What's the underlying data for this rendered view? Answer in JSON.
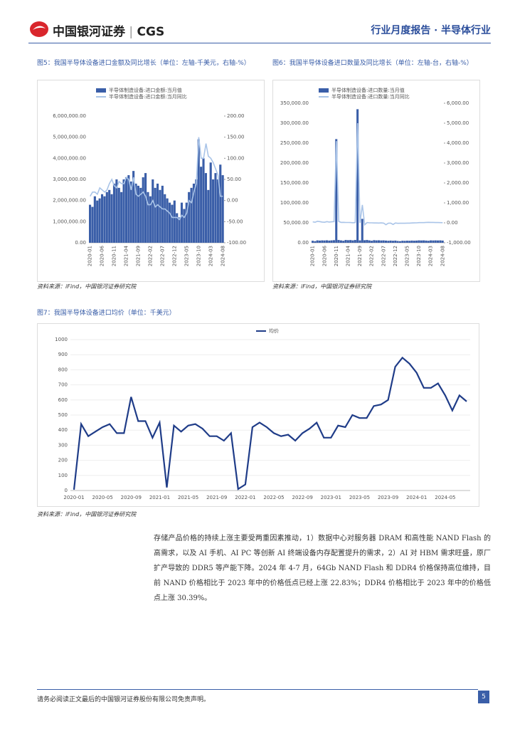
{
  "header": {
    "logo_cn": "中国银河证券",
    "logo_en": "CGS",
    "report": "行业月度报告 · 半导体行业"
  },
  "chart_data": [
    {
      "type": "combo",
      "title": "图5：我国半导体设备进口金额及同比增长（单位：左轴-千美元，右轴-%）",
      "note": "资料来源：iFind，中国银河证券研究院",
      "categories": [
        "2020-01",
        null,
        null,
        null,
        null,
        "2020-06",
        null,
        null,
        null,
        null,
        "2020-11",
        null,
        null,
        null,
        null,
        "2021-04",
        null,
        null,
        null,
        null,
        "2021-09",
        null,
        null,
        null,
        null,
        "2022-02",
        null,
        null,
        null,
        null,
        "2022-07",
        null,
        null,
        null,
        null,
        "2022-12",
        null,
        null,
        null,
        null,
        "2023-05",
        null,
        null,
        null,
        null,
        "2023-10",
        null,
        null,
        null,
        null,
        "2024-03",
        null,
        null,
        null,
        null,
        "2024-08"
      ],
      "series": [
        {
          "name": "半导体制造设备:进口金额:当月值",
          "type": "bar",
          "color": "#3a5ea8",
          "values": [
            1800000,
            1700000,
            2200000,
            2000000,
            2100000,
            2300000,
            2200000,
            2400000,
            2500000,
            2300000,
            2800000,
            3000000,
            2600000,
            2400000,
            3000000,
            3100000,
            3200000,
            2900000,
            3400000,
            2800000,
            2700000,
            2600000,
            3100000,
            3300000,
            2400000,
            2200000,
            3000000,
            2600000,
            2800000,
            2500000,
            2700000,
            2300000,
            2100000,
            1900000,
            1800000,
            2000000,
            1400000,
            1200000,
            1900000,
            1600000,
            1900000,
            2400000,
            2600000,
            2800000,
            3000000,
            4900000,
            3600000,
            4000000,
            3300000,
            2500000,
            3800000,
            3000000,
            3300000,
            3000000,
            3700000,
            3200000
          ]
        },
        {
          "name": "半导体制造设备:进口金额:当月同比",
          "type": "line",
          "axis": "y2",
          "color": "#a9c4e8",
          "values": [
            10,
            20,
            20,
            15,
            30,
            25,
            20,
            25,
            40,
            50,
            35,
            30,
            45,
            40,
            40,
            55,
            50,
            25,
            55,
            15,
            10,
            15,
            20,
            10,
            -10,
            -10,
            0,
            -15,
            -10,
            -15,
            -20,
            -20,
            -25,
            -30,
            -40,
            -40,
            -40,
            -45,
            -35,
            -40,
            -30,
            0,
            -5,
            20,
            40,
            150,
            100,
            100,
            135,
            105,
            100,
            90,
            75,
            60,
            10,
            10
          ]
        }
      ],
      "ylim": [
        0,
        6000000
      ],
      "yticks": [
        {
          "value": 0,
          "label": "0.00"
        },
        {
          "value": 1000000,
          "label": "1,000,000.00"
        },
        {
          "value": 2000000,
          "label": "2,000,000.00"
        },
        {
          "value": 3000000,
          "label": "3,000,000.00"
        },
        {
          "value": 4000000,
          "label": "4,000,000.00"
        },
        {
          "value": 5000000,
          "label": "5,000,000.00"
        },
        {
          "value": 6000000,
          "label": "6,000,000.00"
        }
      ],
      "y2lim": [
        -100,
        200
      ],
      "y2ticks": [
        {
          "value": -100,
          "label": "-100.00"
        },
        {
          "value": -50,
          "label": "-50.00"
        },
        {
          "value": 0,
          "label": "0.00"
        },
        {
          "value": 50,
          "label": "50.00"
        },
        {
          "value": 100,
          "label": "100.00"
        },
        {
          "value": 150,
          "label": "150.00"
        },
        {
          "value": 200,
          "label": "200.00"
        }
      ]
    },
    {
      "type": "combo",
      "title": "图6：我国半导体设备进口数量及同比增长（单位：左轴-台，右轴-%）",
      "note": "资料来源：iFind，中国银河证券研究院",
      "categories": [
        "2020-01",
        null,
        null,
        null,
        null,
        "2020-06",
        null,
        null,
        null,
        null,
        "2020-11",
        null,
        null,
        null,
        null,
        "2021-04",
        null,
        null,
        null,
        null,
        "2021-09",
        null,
        null,
        null,
        null,
        "2022-02",
        null,
        null,
        null,
        null,
        "2022-07",
        null,
        null,
        null,
        null,
        "2022-12",
        null,
        null,
        null,
        null,
        "2023-05",
        null,
        null,
        null,
        null,
        "2023-10",
        null,
        null,
        null,
        null,
        "2024-03",
        null,
        null,
        null,
        null,
        "2024-08"
      ],
      "series": [
        {
          "name": "半导体制造设备:进口数量:当月值",
          "type": "bar",
          "color": "#3a5ea8",
          "values": [
            5000,
            4000,
            6000,
            5500,
            6000,
            5800,
            6200,
            5500,
            6000,
            6500,
            260000,
            7000,
            6000,
            5000,
            7000,
            6500,
            6800,
            6000,
            7000,
            335000,
            6000,
            60000,
            6500,
            7000,
            6000,
            5000,
            6500,
            6000,
            6200,
            5800,
            6000,
            5500,
            5000,
            5500,
            5000,
            5500,
            4500,
            4000,
            5000,
            4800,
            5200,
            5000,
            5500,
            5200,
            5500,
            6000,
            5800,
            6000,
            5500,
            5000,
            6000,
            5800,
            6000,
            5800,
            6000,
            5500
          ]
        },
        {
          "name": "半导体制造设备:进口数量:当月同比",
          "type": "line",
          "axis": "y2",
          "color": "#a9c4e8",
          "values": [
            50,
            30,
            80,
            60,
            40,
            30,
            60,
            40,
            50,
            60,
            4100,
            70,
            20,
            25,
            17,
            18,
            13,
            3,
            13,
            5000,
            0,
            900,
            -97,
            16,
            0,
            0,
            -7,
            -8,
            -9,
            -3,
            -14,
            -98,
            -17,
            -15,
            -83,
            -8,
            -25,
            -20,
            -23,
            -20,
            -16,
            -14,
            -8,
            -5,
            0,
            9,
            10,
            9,
            22,
            25,
            20,
            21,
            15,
            16,
            9,
            6
          ]
        }
      ],
      "ylim": [
        0,
        350000
      ],
      "yticks": [
        {
          "value": 0,
          "label": "0.00"
        },
        {
          "value": 50000,
          "label": "50,000.00"
        },
        {
          "value": 100000,
          "label": "100,000.00"
        },
        {
          "value": 150000,
          "label": "150,000.00"
        },
        {
          "value": 200000,
          "label": "200,000.00"
        },
        {
          "value": 250000,
          "label": "250,000.00"
        },
        {
          "value": 300000,
          "label": "300,000.00"
        },
        {
          "value": 350000,
          "label": "350,000.00"
        }
      ],
      "y2lim": [
        -1000,
        6000
      ],
      "y2ticks": [
        {
          "value": -1000,
          "label": "-1,000.00"
        },
        {
          "value": 0,
          "label": "0.00"
        },
        {
          "value": 1000,
          "label": "1,000.00"
        },
        {
          "value": 2000,
          "label": "2,000.00"
        },
        {
          "value": 3000,
          "label": "3,000.00"
        },
        {
          "value": 4000,
          "label": "4,000.00"
        },
        {
          "value": 5000,
          "label": "5,000.00"
        },
        {
          "value": 6000,
          "label": "6,000.00"
        }
      ]
    },
    {
      "type": "line",
      "title": "图7：我国半导体设备进口均价（单位：千美元）",
      "note": "资料来源：iFind，中国银河证券研究院",
      "categories": [
        "2020-01",
        null,
        null,
        null,
        "2020-05",
        null,
        null,
        null,
        "2020-09",
        null,
        null,
        null,
        "2021-01",
        null,
        null,
        null,
        "2021-05",
        null,
        null,
        null,
        "2021-09",
        null,
        null,
        null,
        "2022-01",
        null,
        null,
        null,
        "2022-05",
        null,
        null,
        null,
        "2022-09",
        null,
        null,
        null,
        "2023-01",
        null,
        null,
        null,
        "2023-05",
        null,
        null,
        null,
        "2023-09",
        null,
        null,
        null,
        "2024-01",
        null,
        null,
        null,
        "2024-05",
        null,
        null,
        null
      ],
      "series": [
        {
          "name": "均价",
          "type": "line",
          "color": "#1f3c88",
          "values": [
            5,
            440,
            360,
            390,
            420,
            440,
            380,
            380,
            620,
            460,
            460,
            350,
            450,
            20,
            430,
            390,
            430,
            440,
            410,
            360,
            360,
            330,
            380,
            10,
            40,
            420,
            450,
            420,
            380,
            360,
            370,
            330,
            380,
            410,
            450,
            350,
            350,
            430,
            420,
            500,
            480,
            480,
            560,
            570,
            600,
            820,
            880,
            840,
            780,
            680,
            680,
            710,
            630,
            530,
            630,
            590
          ]
        }
      ],
      "ylim": [
        0,
        1000
      ],
      "yticks": [
        0,
        100,
        200,
        300,
        400,
        500,
        600,
        700,
        800,
        900,
        1000
      ]
    }
  ],
  "body": {
    "paragraph": "存储产品价格的持续上涨主要受两重因素推动，1）数据中心对服务器 DRAM 和高性能 NAND Flash 的高需求，以及 AI 手机、AI PC 等创新 AI 终端设备内存配置提升的需求，2）AI 对 HBM 需求旺盛，原厂扩产导致的 DDR5 等产能下降。2024 年 4-7 月，64Gb NAND Flash 和 DDR4 价格保持高位维持，目前 NAND 价格相比于 2023 年中的价格低点已经上涨 22.83%；DDR4 价格相比于 2023 年中的价格低点上涨 30.39%。"
  },
  "footer": {
    "disclaimer": "请务必阅读正文最后的中国银河证券股份有限公司免责声明。",
    "page": 5
  }
}
